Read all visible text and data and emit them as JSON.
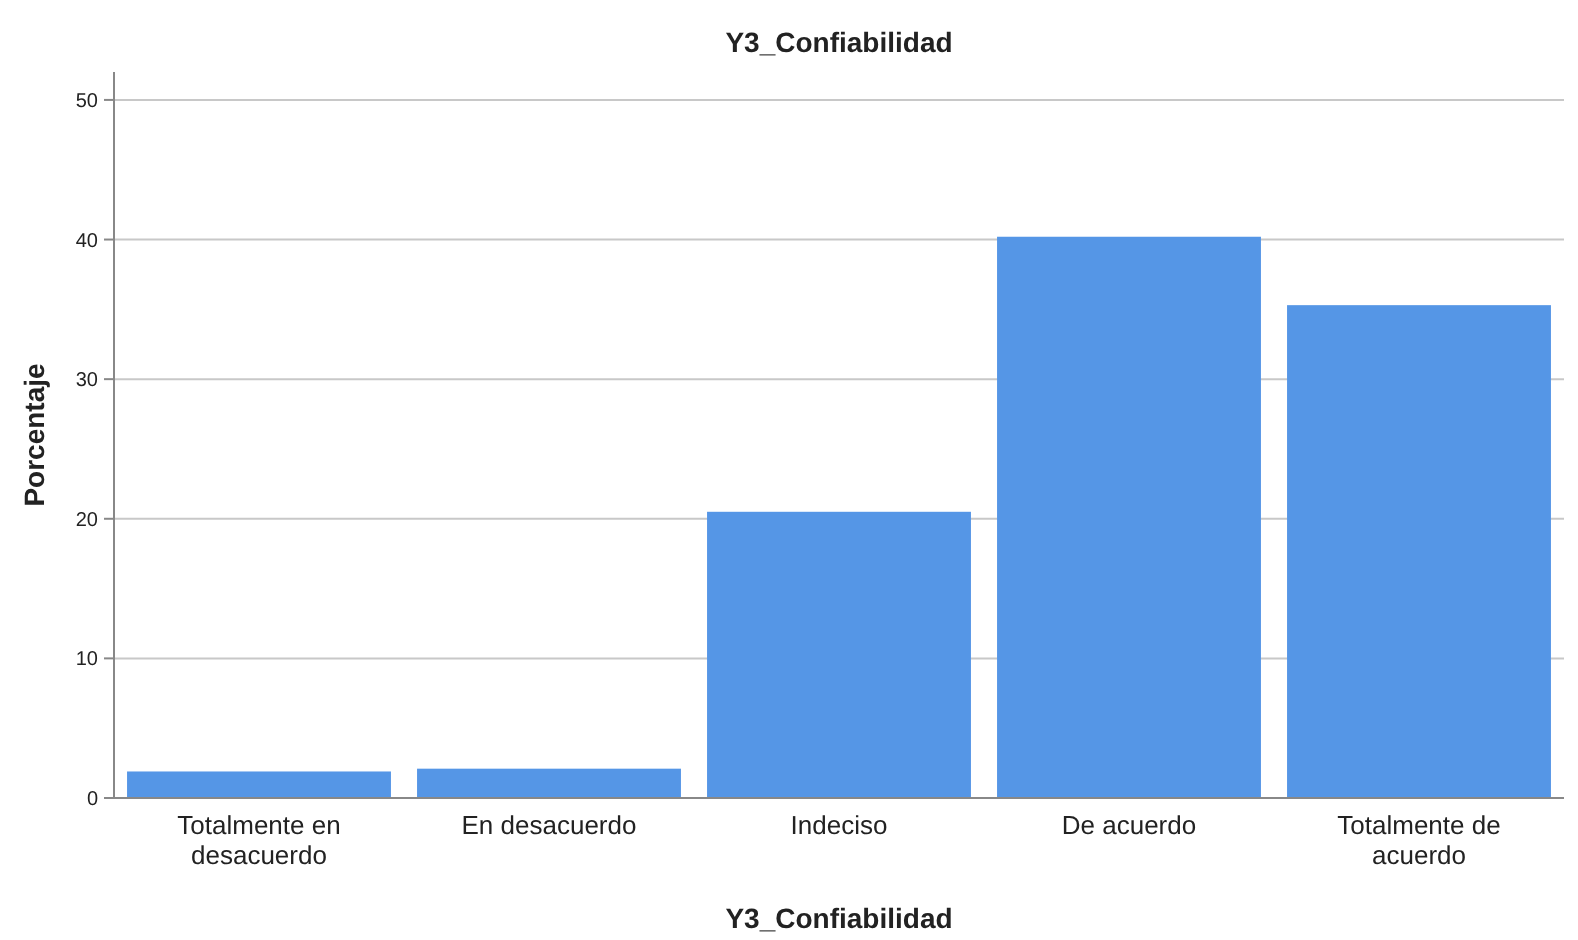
{
  "chart_data": {
    "type": "bar",
    "title": "Y3_Confiabilidad",
    "xlabel": "Y3_Confiabilidad",
    "ylabel": "Porcentaje",
    "categories": [
      "Totalmente en desacuerdo",
      "En desacuerdo",
      "Indeciso",
      "De acuerdo",
      "Totalmente de acuerdo"
    ],
    "values": [
      1.9,
      2.1,
      20.5,
      40.2,
      35.3
    ],
    "color": "#5596e6",
    "ylim": [
      0,
      52
    ],
    "yticks": [
      0,
      10,
      20,
      30,
      40,
      50
    ],
    "grid": "y"
  }
}
